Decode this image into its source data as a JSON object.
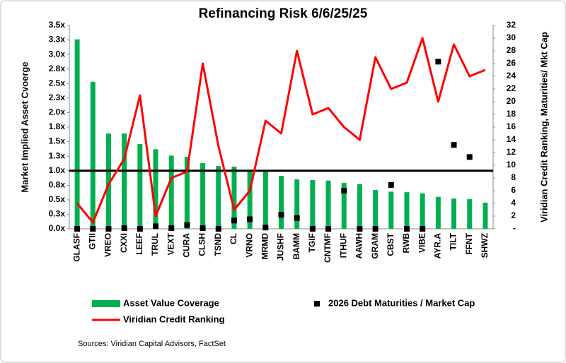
{
  "chart_data": {
    "type": "combo",
    "title": "Refinancing Risk 6/6/25/25",
    "y_label": "Market Implied Asset Cvoerge",
    "y2_label": "Viridian Credit Ranking,  Maturities/ Mkt Cap",
    "source": "Sources: Viridian Capital Advisors, FactSet",
    "categories": [
      "GLASF",
      "GTII",
      "VREO",
      "CXXI",
      "LEEF",
      "TRUL",
      "VEXT",
      "CURA",
      "CLSH",
      "TSND",
      "CL",
      "VRNO",
      "MRMD",
      "JUSHF",
      "BAMM",
      "TGIF",
      "CNTMF",
      "ITHUF",
      "AAWH",
      "GRAM",
      "CBST",
      "RWB",
      "VIBE",
      "AYR.A",
      "TILT",
      "FFNT",
      "SHWZ"
    ],
    "series": [
      {
        "name": "Asset Value Coverage",
        "type": "bar",
        "color": "#00b050",
        "values": [
          3.26,
          2.53,
          1.64,
          1.64,
          1.46,
          1.37,
          1.26,
          1.24,
          1.13,
          1.08,
          1.07,
          1.0,
          1.0,
          0.91,
          0.85,
          0.84,
          0.83,
          0.79,
          0.77,
          0.67,
          0.64,
          0.63,
          0.61,
          0.55,
          0.52,
          0.51,
          0.45
        ]
      },
      {
        "name": "2026 Debt Maturities / Market Cap",
        "type": "scatter",
        "axis": "y2",
        "color": "#000000",
        "values": [
          0,
          0,
          0,
          0.1,
          0,
          0.4,
          0.1,
          0.6,
          0.1,
          0,
          1.3,
          1.5,
          0.2,
          2.2,
          1.7,
          0,
          0,
          6,
          0,
          0,
          6.9,
          0,
          0,
          26.3,
          13.2,
          11.3,
          null
        ]
      },
      {
        "name": "Viridian Credit Ranking",
        "type": "line",
        "axis": "y2",
        "color": "#ff0000",
        "values": [
          4,
          1,
          7,
          11,
          21,
          2,
          8,
          9,
          26,
          13,
          3,
          6,
          17,
          15,
          28,
          18,
          19,
          16,
          14,
          27,
          22,
          23,
          30,
          20,
          29,
          24,
          25
        ]
      }
    ],
    "reference_line": 1.0,
    "ylim": [
      0,
      3.5
    ],
    "yticks": [
      {
        "value": 0,
        "label": "0.0x"
      },
      {
        "value": 0.25,
        "label": "0.3x"
      },
      {
        "value": 0.5,
        "label": "0.5x"
      },
      {
        "value": 0.75,
        "label": "0.8x"
      },
      {
        "value": 1,
        "label": "1.0x"
      },
      {
        "value": 1.25,
        "label": "1.3x"
      },
      {
        "value": 1.5,
        "label": "1.5x"
      },
      {
        "value": 1.75,
        "label": "1.8x"
      },
      {
        "value": 2,
        "label": "2.0x"
      },
      {
        "value": 2.25,
        "label": "2.3x"
      },
      {
        "value": 2.5,
        "label": "2.5x"
      },
      {
        "value": 2.75,
        "label": "2.8x"
      },
      {
        "value": 3,
        "label": "3.0x"
      },
      {
        "value": 3.25,
        "label": "3.3x"
      },
      {
        "value": 3.5,
        "label": "3.5x"
      }
    ],
    "y2lim": [
      0,
      32
    ],
    "y2ticks": [
      {
        "value": 0,
        "label": "-"
      },
      2,
      4,
      6,
      8,
      10,
      12,
      14,
      16,
      18,
      20,
      22,
      24,
      26,
      28,
      30,
      32
    ]
  }
}
